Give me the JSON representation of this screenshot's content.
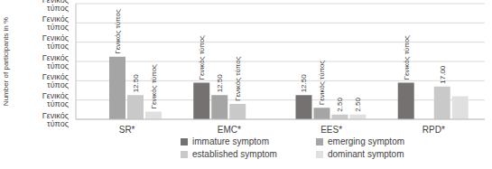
{
  "chart_data": {
    "type": "bar",
    "y_label": "Number of participants in %",
    "categories": [
      "SR*",
      "EMC*",
      "EES*",
      "RPD*"
    ],
    "series": [
      {
        "name": "immature symptom",
        "color": "#767171",
        "values": [
          0,
          19,
          12.5,
          19
        ],
        "value_labels": [
          "Γενικός τύπος",
          "Γενικός τύπος",
          "12.50",
          "Γενικός τύπος"
        ]
      },
      {
        "name": "emerging symptom",
        "color": "#a5a5a5",
        "values": [
          32.5,
          12.5,
          6,
          0
        ],
        "value_labels": [
          "Γενικός τύπος",
          "12.50",
          "Γενικός τύπος",
          "Γενικός τύπος"
        ]
      },
      {
        "name": "established symptom",
        "color": "#c9c9c9",
        "values": [
          12.5,
          8,
          2.5,
          17
        ],
        "value_labels": [
          "12.50",
          "Γενικός τύπος",
          "2.50",
          "17.00"
        ]
      },
      {
        "name": "dominant symptom",
        "color": "#e0e0e0",
        "values": [
          4,
          0,
          2.5,
          12
        ],
        "value_labels": [
          "Γενικός τύπος",
          null,
          "2.50",
          null
        ]
      }
    ],
    "ylim": [
      0,
      60
    ],
    "yticks": [
      {
        "value": 0,
        "label": "Γενικός τύπος"
      },
      {
        "value": 10,
        "label": "Γενικός τύπος"
      },
      {
        "value": 20,
        "label": "Γενικός τύπος"
      },
      {
        "value": 30,
        "label": "Γενικός τύπος"
      },
      {
        "value": 40,
        "label": "Γενικός τύπος"
      },
      {
        "value": 50,
        "label": "Γενικός τύπος"
      },
      {
        "value": 60,
        "label": "Γενικός τύπος"
      }
    ],
    "grid": true,
    "legend": "bottom",
    "data_labels": true
  }
}
